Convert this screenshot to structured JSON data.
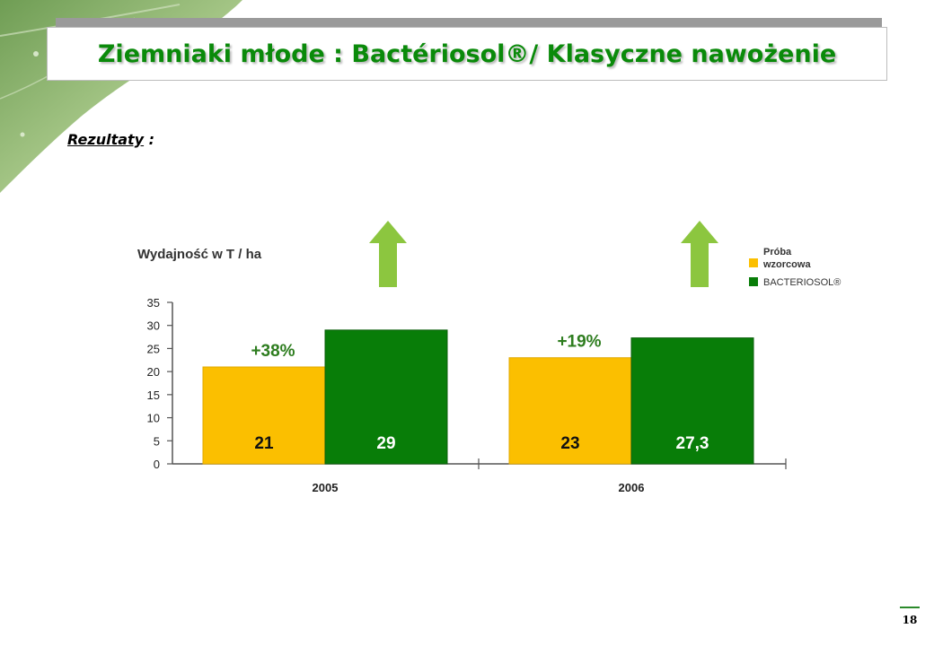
{
  "slide": {
    "title": "Ziemniaki młode : Bactériosol®/ Klasyczne nawożenie",
    "subheading": "Rezultaty",
    "subheading_suffix": " :",
    "page_number": "18"
  },
  "colors": {
    "title_green": "#0a8a0a",
    "control_yellow": "#fbbf00",
    "bacteriosol_green": "#087d08",
    "arrow_green": "#8cc63f",
    "percent_green": "#2e7d1f"
  },
  "chart_data": {
    "type": "bar",
    "ylabel": "Wydajność w T / ha",
    "ylim": [
      0,
      35
    ],
    "yticks": [
      "0",
      "5",
      "10",
      "15",
      "20",
      "25",
      "30",
      "35"
    ],
    "categories": [
      "2005",
      "2006"
    ],
    "series": [
      {
        "name": "Próba wzorcowa",
        "values": [
          21,
          23
        ],
        "labels": [
          "21",
          "23"
        ],
        "color": "#fbbf00"
      },
      {
        "name": "BACTERIOSOL®",
        "values": [
          29,
          27.3
        ],
        "labels": [
          "29",
          "27,3"
        ],
        "color": "#087d08"
      }
    ],
    "annotations": [
      "+38%",
      "+19%"
    ],
    "legend": [
      "Próba",
      "wzorcowa",
      "BACTERIOSOL®"
    ],
    "legend_position": "top-right",
    "grid": false
  }
}
